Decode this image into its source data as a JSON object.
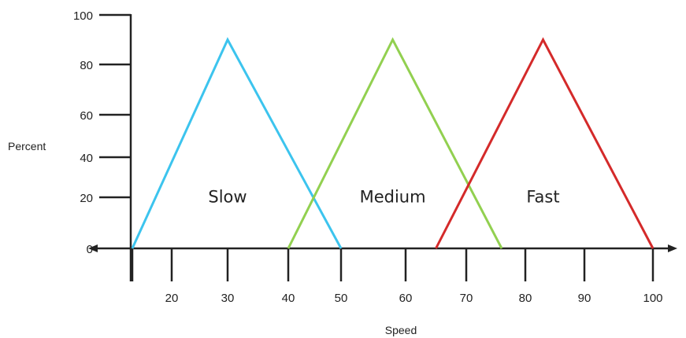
{
  "chart_data": {
    "type": "line",
    "xlabel": "Speed",
    "ylabel": "Percent",
    "ylim": [
      0,
      100
    ],
    "x_ticks": [
      {
        "value": 20,
        "label": "20"
      },
      {
        "value": 30,
        "label": "30"
      },
      {
        "value": 40,
        "label": "40"
      },
      {
        "value": 50,
        "label": "50"
      },
      {
        "value": 60,
        "label": "60"
      },
      {
        "value": 70,
        "label": "70"
      },
      {
        "value": 80,
        "label": "80"
      },
      {
        "value": 90,
        "label": "90"
      },
      {
        "value": 100,
        "label": "100"
      }
    ],
    "y_ticks": [
      {
        "value": 0,
        "label": "0"
      },
      {
        "value": 20,
        "label": "20"
      },
      {
        "value": 40,
        "label": "40"
      },
      {
        "value": 60,
        "label": "60"
      },
      {
        "value": 80,
        "label": "80"
      },
      {
        "value": 100,
        "label": "100"
      }
    ],
    "grid": false,
    "legend": "none",
    "series": [
      {
        "label": "Slow",
        "color": "#3cc4ee",
        "x": [
          13,
          30,
          50
        ],
        "y": [
          0,
          90,
          0
        ]
      },
      {
        "label": "Medium",
        "color": "#92d050",
        "x": [
          40,
          58,
          76
        ],
        "y": [
          0,
          90,
          0
        ]
      },
      {
        "label": "Fast",
        "color": "#d42a2a",
        "x": [
          65,
          83,
          100
        ],
        "y": [
          0,
          90,
          0
        ]
      }
    ]
  }
}
